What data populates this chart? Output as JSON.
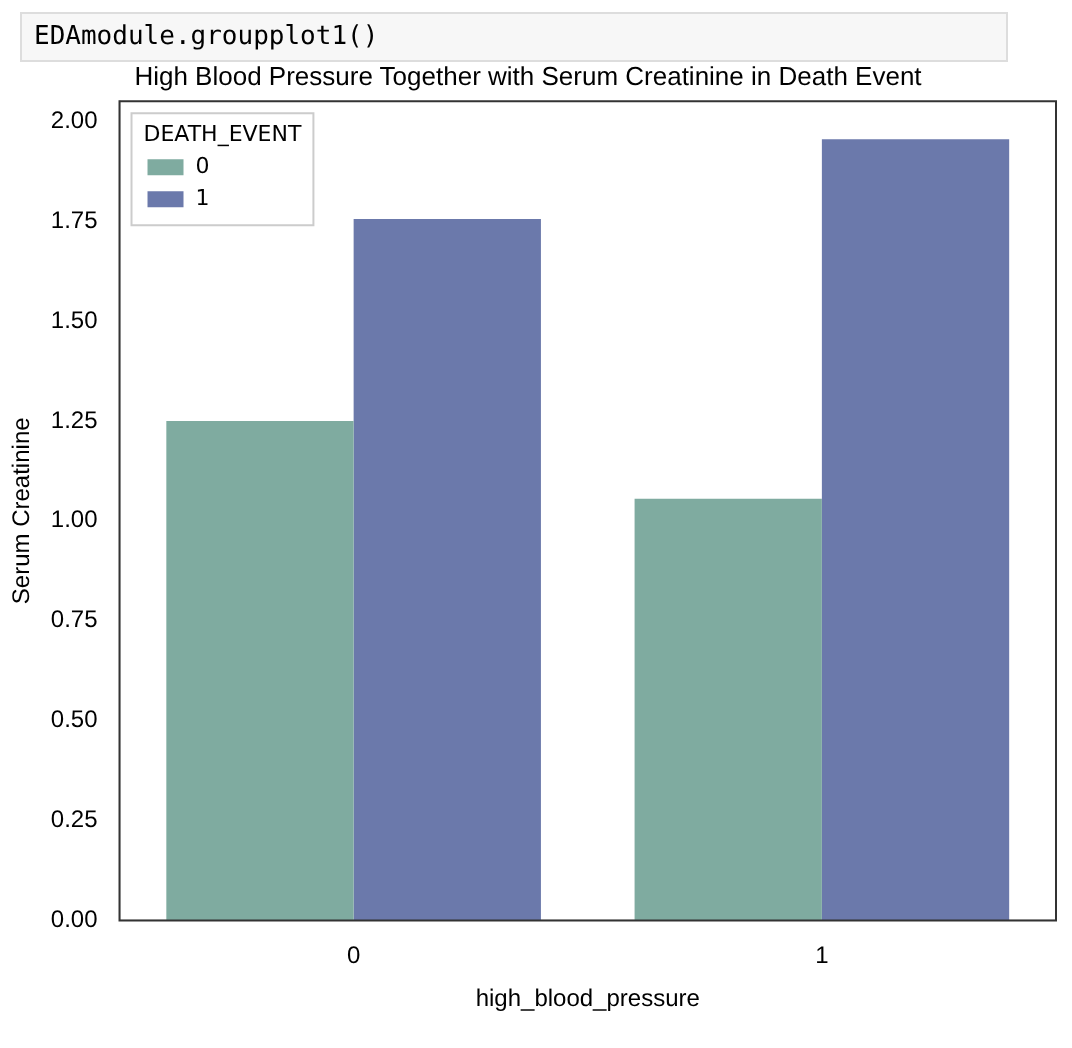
{
  "chart_data": {
    "type": "bar",
    "title": "High Blood Pressure Together with Serum Creatinine in Death Event",
    "xlabel": "high_blood_pressure",
    "ylabel": "Serum Creatinine",
    "legend_title": "DEATH_EVENT",
    "annotations": [
      "EDAmodule.groupplot1()"
    ],
    "categories": [
      "0",
      "1"
    ],
    "series": [
      {
        "name": "0",
        "color": "#7faba0",
        "values": [
          1.25,
          1.055
        ]
      },
      {
        "name": "1",
        "color": "#6b79ab",
        "values": [
          1.755,
          1.955
        ]
      }
    ],
    "ylim": [
      0,
      2.05
    ],
    "yticks": [
      {
        "value": 0,
        "label": "0.00"
      },
      {
        "value": 0.25,
        "label": "0.25"
      },
      {
        "value": 0.5,
        "label": "0.50"
      },
      {
        "value": 0.75,
        "label": "0.75"
      },
      {
        "value": 1,
        "label": "1.00"
      },
      {
        "value": 1.25,
        "label": "1.25"
      },
      {
        "value": 1.5,
        "label": "1.50"
      },
      {
        "value": 1.75,
        "label": "1.75"
      },
      {
        "value": 2,
        "label": "2.00"
      }
    ],
    "grid": false,
    "legend": "top left"
  }
}
